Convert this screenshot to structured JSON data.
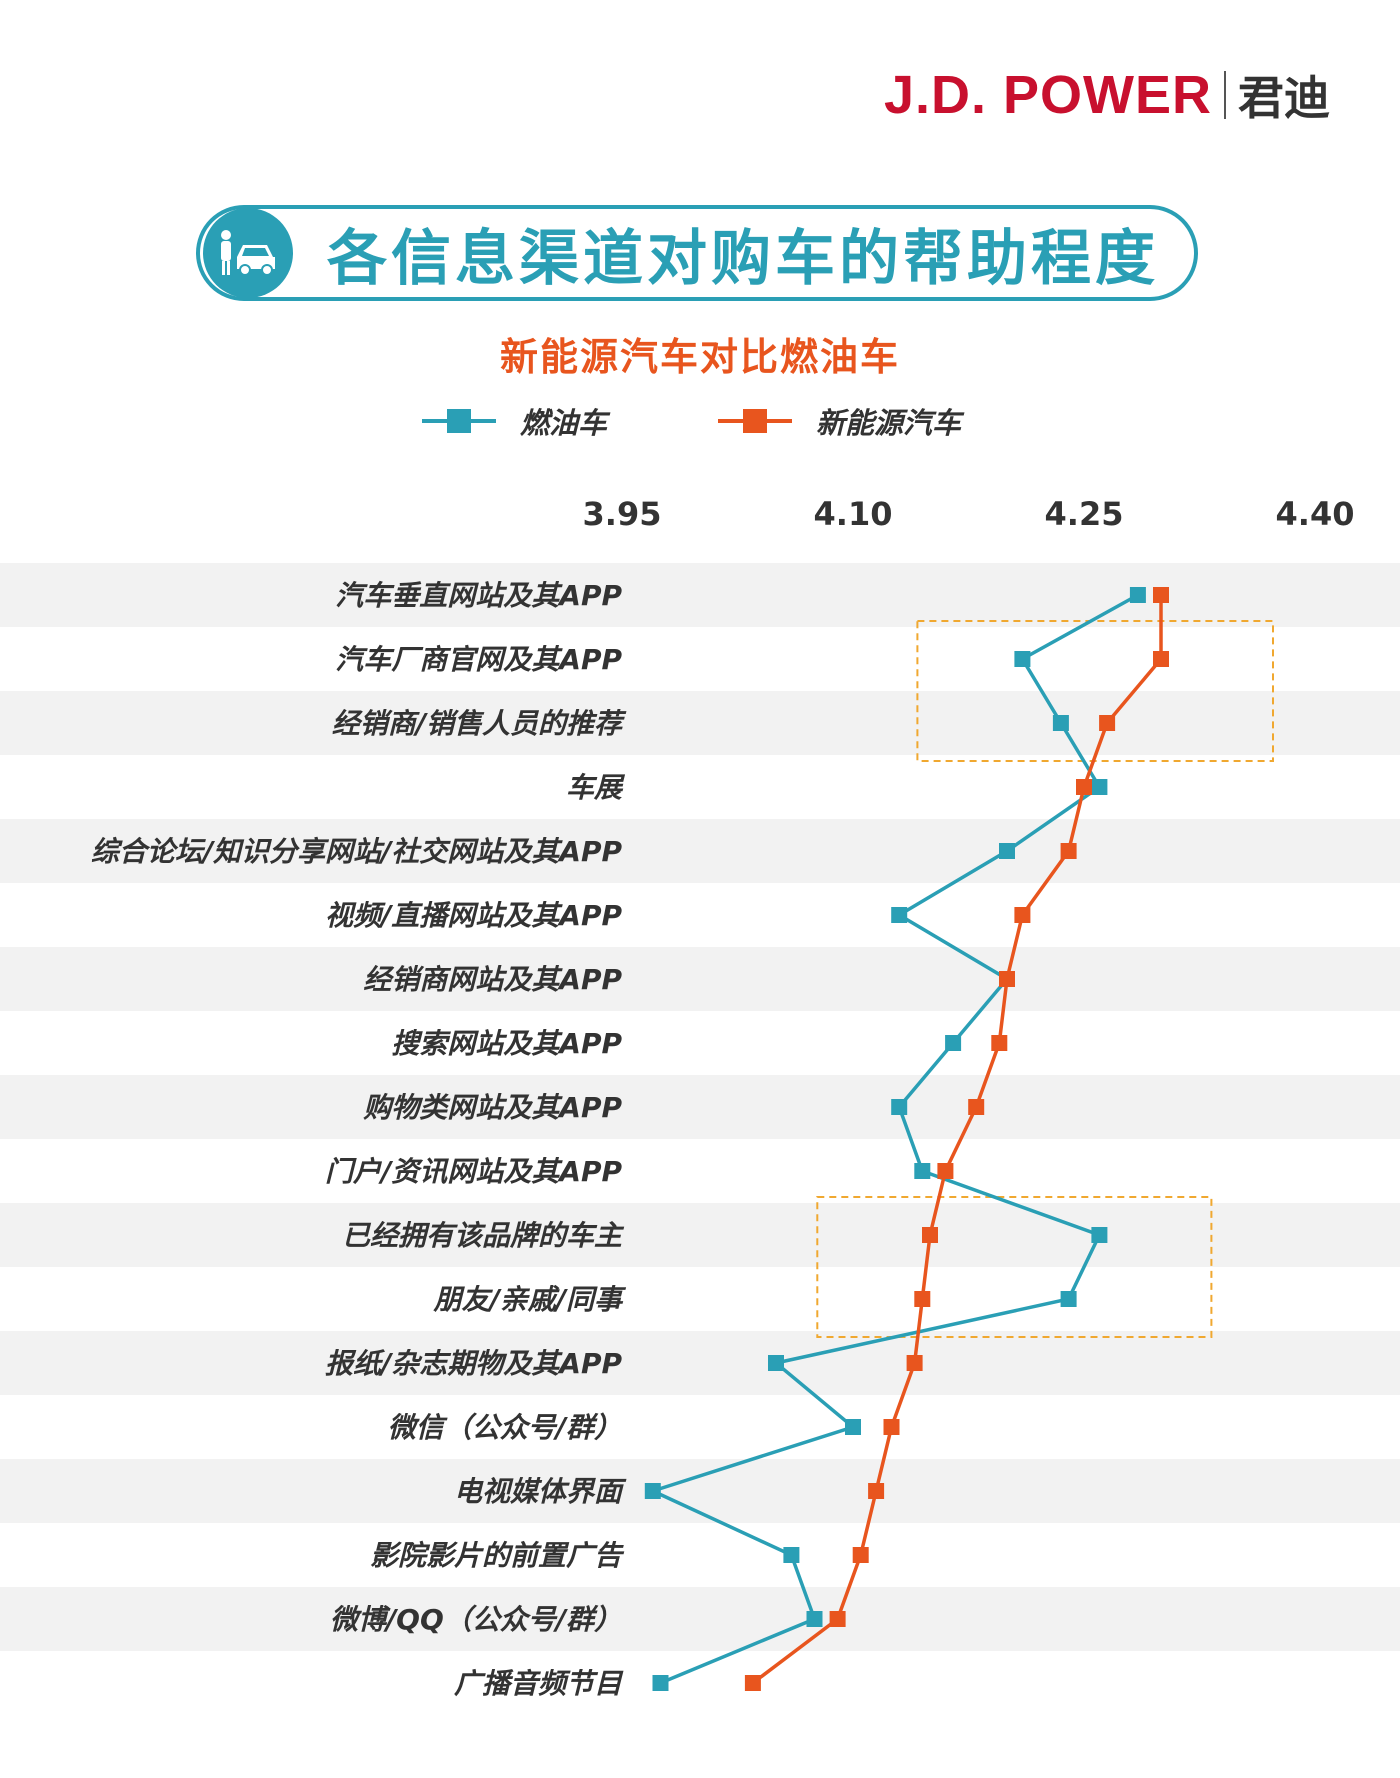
{
  "header": {
    "brand": "J.D. POWER",
    "brand_cn": "君迪"
  },
  "title": "各信息渠道对购车的帮助程度",
  "subtitle": "新能源汽车对比燃油车",
  "colors": {
    "teal": "#2a9fb5",
    "orange": "#e8551e",
    "band": "#f2f2f2",
    "highlight": "#f0a830"
  },
  "chart_data": {
    "type": "line",
    "orientation": "horizontal",
    "title": "各信息渠道对购车的帮助程度",
    "subtitle": "新能源汽车对比燃油车",
    "xlim": [
      3.95,
      4.4
    ],
    "xticks": [
      "3.95",
      "4.10",
      "4.25",
      "4.40"
    ],
    "legend_position": "top",
    "categories": [
      "汽车垂直网站及其APP",
      "汽车厂商官网及其APP",
      "经销商/销售人员的推荐",
      "车展",
      "综合论坛/知识分享网站/社交网站及其APP",
      "视频/直播网站及其APP",
      "经销商网站及其APP",
      "搜索网站及其APP",
      "购物类网站及其APP",
      "门户/资讯网站及其APP",
      "已经拥有该品牌的车主",
      "朋友/亲戚/同事",
      "报纸/杂志期物及其APP",
      "微信（公众号/群）",
      "电视媒体界面",
      "影院影片的前置广告",
      "微博/QQ（公众号/群）",
      "广播音频节目"
    ],
    "series": [
      {
        "name": "燃油车",
        "color": "#2a9fb5",
        "values": [
          4.285,
          4.21,
          4.235,
          4.26,
          4.2,
          4.13,
          4.2,
          4.165,
          4.13,
          4.145,
          4.26,
          4.24,
          4.05,
          4.1,
          3.97,
          4.06,
          4.075,
          3.975
        ]
      },
      {
        "name": "新能源汽车",
        "color": "#e8551e",
        "values": [
          4.3,
          4.3,
          4.265,
          4.25,
          4.24,
          4.21,
          4.2,
          4.195,
          4.18,
          4.16,
          4.15,
          4.145,
          4.14,
          4.125,
          4.115,
          4.105,
          4.09,
          4.035
        ]
      }
    ],
    "highlight_groups": [
      [
        1,
        2
      ],
      [
        10,
        11
      ]
    ]
  }
}
